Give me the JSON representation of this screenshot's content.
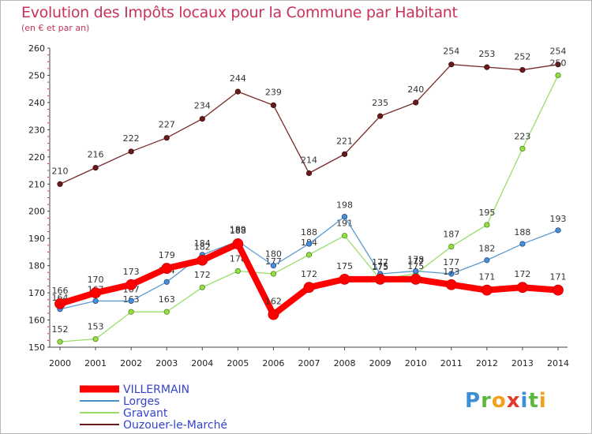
{
  "chart_data": {
    "type": "line",
    "title": "Evolution des Impôts locaux pour la Commune par Habitant",
    "subtitle": "(en € et par an)",
    "x": [
      "2000",
      "2001",
      "2002",
      "2003",
      "2004",
      "2005",
      "2006",
      "2007",
      "2008",
      "2009",
      "2010",
      "2011",
      "2012",
      "2013",
      "2014"
    ],
    "ylim": [
      150,
      260
    ],
    "yticks": [
      "150",
      "160",
      "170",
      "180",
      "190",
      "200",
      "210",
      "220",
      "230",
      "240",
      "250",
      "260"
    ],
    "grid": false,
    "legend_position": "bottom-left",
    "series": [
      {
        "name": "Ouzouer-le-Marché",
        "color": "#6b1a1a",
        "values": [
          210,
          216,
          222,
          227,
          234,
          244,
          239,
          214,
          221,
          235,
          240,
          254,
          253,
          252,
          254
        ]
      },
      {
        "name": "Gravant",
        "color": "#99dd66",
        "values": [
          152,
          153,
          163,
          163,
          172,
          178,
          177,
          184,
          191,
          175,
          177,
          187,
          195,
          223,
          250
        ]
      },
      {
        "name": "Lorges",
        "color": "#4a90c8",
        "values": [
          164,
          167,
          167,
          174,
          184,
          189,
          180,
          188,
          198,
          177,
          178,
          177,
          182,
          188,
          193
        ]
      },
      {
        "name": "VILLERMAIN",
        "color": "#ff0000",
        "values": [
          166,
          170,
          173,
          179,
          182,
          188,
          162,
          172,
          175,
          175,
          175,
          173,
          171,
          172,
          171
        ]
      }
    ],
    "legend_order": [
      "VILLERMAIN",
      "Lorges",
      "Gravant",
      "Ouzouer-le-Marché"
    ]
  },
  "logo": {
    "letters": [
      "P",
      "r",
      "o",
      "x",
      "i",
      "t",
      "i"
    ],
    "colors": [
      "#3a8fd6",
      "#5cb83c",
      "#f2a01e",
      "#e03a2a",
      "#3a8fd6",
      "#5cb83c",
      "#f2a01e"
    ]
  }
}
